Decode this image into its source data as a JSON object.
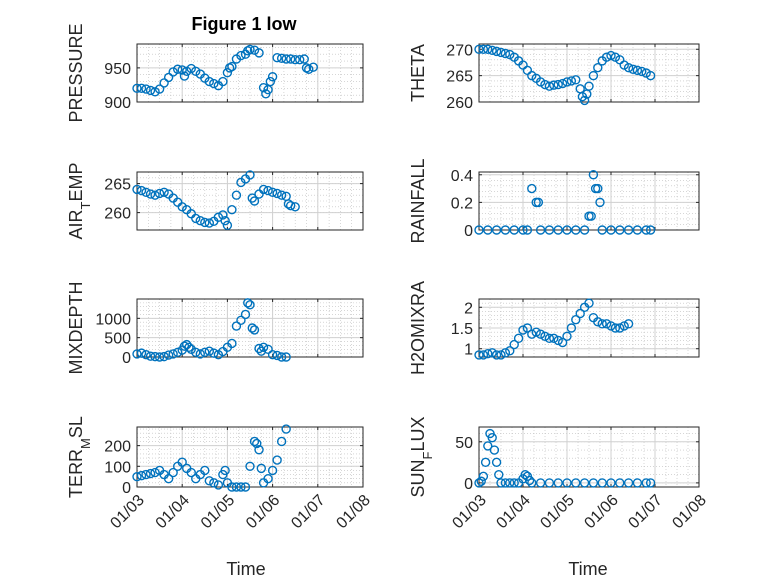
{
  "figure": {
    "title": "Figure 1 low"
  },
  "colors": {
    "marker": "#0072bd",
    "axis": "#262626",
    "grid": "#d0d0d0",
    "grid_minor": "#bdbdbd"
  },
  "time_axis": {
    "label": "Time",
    "ticks": [
      {
        "value": 0,
        "label": "01/03"
      },
      {
        "value": 1,
        "label": "01/04"
      },
      {
        "value": 2,
        "label": "01/05"
      },
      {
        "value": 3,
        "label": "01/06"
      },
      {
        "value": 4,
        "label": "01/07"
      },
      {
        "value": 5,
        "label": "01/08"
      }
    ]
  },
  "chart_data": [
    {
      "type": "scatter",
      "ylabel": "PRESSURE",
      "ylabel_parts": [
        {
          "text": "PRESSURE"
        }
      ],
      "ylim": [
        900,
        985
      ],
      "yticks": [
        900,
        950
      ],
      "xlim": [
        0,
        5
      ],
      "points": [
        [
          0,
          920
        ],
        [
          0.1,
          920
        ],
        [
          0.2,
          919
        ],
        [
          0.3,
          917
        ],
        [
          0.4,
          915
        ],
        [
          0.5,
          919
        ],
        [
          0.6,
          928
        ],
        [
          0.7,
          936
        ],
        [
          0.8,
          944
        ],
        [
          0.9,
          948
        ],
        [
          1.0,
          947
        ],
        [
          1.05,
          938
        ],
        [
          1.1,
          945
        ],
        [
          1.2,
          949
        ],
        [
          1.3,
          945
        ],
        [
          1.4,
          941
        ],
        [
          1.5,
          935
        ],
        [
          1.6,
          930
        ],
        [
          1.7,
          927
        ],
        [
          1.8,
          924
        ],
        [
          1.9,
          930
        ],
        [
          2.0,
          943
        ],
        [
          2.05,
          950
        ],
        [
          2.1,
          952
        ],
        [
          2.2,
          963
        ],
        [
          2.3,
          968
        ],
        [
          2.4,
          970
        ],
        [
          2.45,
          975
        ],
        [
          2.5,
          977
        ],
        [
          2.6,
          976
        ],
        [
          2.7,
          972
        ],
        [
          2.8,
          921
        ],
        [
          2.85,
          912
        ],
        [
          2.9,
          918
        ],
        [
          2.95,
          930
        ],
        [
          3.0,
          937
        ],
        [
          3.1,
          965
        ],
        [
          3.2,
          964
        ],
        [
          3.3,
          963
        ],
        [
          3.4,
          963
        ],
        [
          3.5,
          962
        ],
        [
          3.6,
          962
        ],
        [
          3.7,
          963
        ],
        [
          3.75,
          950
        ],
        [
          3.8,
          948
        ],
        [
          3.9,
          951
        ]
      ]
    },
    {
      "type": "scatter",
      "ylabel": "THETA",
      "ylabel_parts": [
        {
          "text": "THETA"
        }
      ],
      "ylim": [
        260,
        271
      ],
      "yticks": [
        260,
        265,
        270
      ],
      "xlim": [
        0,
        5
      ],
      "points": [
        [
          0,
          270
        ],
        [
          0.1,
          270
        ],
        [
          0.2,
          270
        ],
        [
          0.3,
          269.8
        ],
        [
          0.4,
          269.6
        ],
        [
          0.5,
          269.4
        ],
        [
          0.6,
          269.2
        ],
        [
          0.7,
          269
        ],
        [
          0.8,
          268.5
        ],
        [
          0.9,
          267.8
        ],
        [
          1.0,
          267
        ],
        [
          1.1,
          266
        ],
        [
          1.2,
          265
        ],
        [
          1.3,
          264.5
        ],
        [
          1.4,
          263.8
        ],
        [
          1.5,
          263.3
        ],
        [
          1.6,
          263
        ],
        [
          1.7,
          263.2
        ],
        [
          1.8,
          263.3
        ],
        [
          1.9,
          263.5
        ],
        [
          2.0,
          263.8
        ],
        [
          2.1,
          264
        ],
        [
          2.2,
          264.2
        ],
        [
          2.3,
          262.5
        ],
        [
          2.35,
          261
        ],
        [
          2.4,
          260.3
        ],
        [
          2.45,
          261.5
        ],
        [
          2.5,
          263
        ],
        [
          2.6,
          265
        ],
        [
          2.7,
          266.5
        ],
        [
          2.8,
          267.8
        ],
        [
          2.9,
          268.5
        ],
        [
          3.0,
          268.8
        ],
        [
          3.1,
          268.5
        ],
        [
          3.2,
          268
        ],
        [
          3.3,
          267
        ],
        [
          3.4,
          266.5
        ],
        [
          3.5,
          266.2
        ],
        [
          3.6,
          266
        ],
        [
          3.7,
          265.8
        ],
        [
          3.8,
          265.5
        ],
        [
          3.9,
          265
        ]
      ]
    },
    {
      "type": "scatter",
      "ylabel": "AIR_TEMP",
      "ylabel_parts": [
        {
          "text": "AIR"
        },
        {
          "text": "T",
          "sub": true
        },
        {
          "text": "EMP"
        }
      ],
      "ylim": [
        257,
        267
      ],
      "yticks": [
        260,
        265
      ],
      "xlim": [
        0,
        5
      ],
      "points": [
        [
          0,
          264
        ],
        [
          0.1,
          263.8
        ],
        [
          0.2,
          263.5
        ],
        [
          0.3,
          263.2
        ],
        [
          0.4,
          263
        ],
        [
          0.5,
          263.3
        ],
        [
          0.6,
          263.5
        ],
        [
          0.7,
          263.2
        ],
        [
          0.8,
          262.5
        ],
        [
          0.9,
          261.8
        ],
        [
          1.0,
          261
        ],
        [
          1.1,
          260.5
        ],
        [
          1.2,
          259.8
        ],
        [
          1.3,
          259
        ],
        [
          1.4,
          258.6
        ],
        [
          1.5,
          258.3
        ],
        [
          1.6,
          258.2
        ],
        [
          1.7,
          258.5
        ],
        [
          1.8,
          259.2
        ],
        [
          1.9,
          259.6
        ],
        [
          1.95,
          258.6
        ],
        [
          2.0,
          257.8
        ],
        [
          2.1,
          260.5
        ],
        [
          2.2,
          263
        ],
        [
          2.3,
          265.2
        ],
        [
          2.4,
          265.8
        ],
        [
          2.5,
          266.5
        ],
        [
          2.55,
          262.5
        ],
        [
          2.6,
          262
        ],
        [
          2.7,
          263.2
        ],
        [
          2.8,
          264
        ],
        [
          2.9,
          263.8
        ],
        [
          3.0,
          263.5
        ],
        [
          3.1,
          263.3
        ],
        [
          3.2,
          263
        ],
        [
          3.3,
          262.8
        ],
        [
          3.35,
          261.5
        ],
        [
          3.4,
          261.2
        ],
        [
          3.5,
          261
        ]
      ]
    },
    {
      "type": "scatter",
      "ylabel": "RAINFALL",
      "ylabel_parts": [
        {
          "text": "RAINFALL"
        }
      ],
      "ylim": [
        0,
        0.42
      ],
      "yticks": [
        0,
        0.2,
        0.4
      ],
      "xlim": [
        0,
        5
      ],
      "points": [
        [
          0,
          0
        ],
        [
          0.2,
          0
        ],
        [
          0.4,
          0
        ],
        [
          0.6,
          0
        ],
        [
          0.8,
          0
        ],
        [
          1.0,
          0
        ],
        [
          1.1,
          0
        ],
        [
          1.2,
          0.3
        ],
        [
          1.3,
          0.2
        ],
        [
          1.35,
          0.2
        ],
        [
          1.4,
          0
        ],
        [
          1.6,
          0
        ],
        [
          1.8,
          0
        ],
        [
          2.0,
          0
        ],
        [
          2.2,
          0
        ],
        [
          2.4,
          0
        ],
        [
          2.5,
          0.1
        ],
        [
          2.55,
          0.1
        ],
        [
          2.6,
          0.4
        ],
        [
          2.65,
          0.3
        ],
        [
          2.7,
          0.3
        ],
        [
          2.75,
          0.2
        ],
        [
          2.8,
          0
        ],
        [
          3.0,
          0
        ],
        [
          3.2,
          0
        ],
        [
          3.4,
          0
        ],
        [
          3.6,
          0
        ],
        [
          3.8,
          0
        ],
        [
          3.9,
          0
        ]
      ]
    },
    {
      "type": "scatter",
      "ylabel": "MIXDEPTH",
      "ylabel_parts": [
        {
          "text": "MIXDEPTH"
        }
      ],
      "ylim": [
        0,
        1500
      ],
      "yticks": [
        0,
        500,
        1000
      ],
      "xlim": [
        0,
        5
      ],
      "points": [
        [
          0,
          80
        ],
        [
          0.1,
          100
        ],
        [
          0.2,
          60
        ],
        [
          0.3,
          20
        ],
        [
          0.4,
          10
        ],
        [
          0.5,
          0
        ],
        [
          0.6,
          10
        ],
        [
          0.7,
          50
        ],
        [
          0.8,
          80
        ],
        [
          0.9,
          120
        ],
        [
          1.0,
          180
        ],
        [
          1.05,
          280
        ],
        [
          1.1,
          320
        ],
        [
          1.15,
          250
        ],
        [
          1.2,
          200
        ],
        [
          1.3,
          120
        ],
        [
          1.4,
          80
        ],
        [
          1.5,
          120
        ],
        [
          1.6,
          150
        ],
        [
          1.7,
          100
        ],
        [
          1.8,
          60
        ],
        [
          1.9,
          140
        ],
        [
          2.0,
          250
        ],
        [
          2.1,
          350
        ],
        [
          2.2,
          800
        ],
        [
          2.3,
          950
        ],
        [
          2.4,
          1100
        ],
        [
          2.45,
          1400
        ],
        [
          2.5,
          1350
        ],
        [
          2.55,
          750
        ],
        [
          2.6,
          700
        ],
        [
          2.7,
          220
        ],
        [
          2.75,
          150
        ],
        [
          2.8,
          250
        ],
        [
          2.9,
          200
        ],
        [
          3.0,
          60
        ],
        [
          3.1,
          40
        ],
        [
          3.2,
          0
        ],
        [
          3.3,
          0
        ]
      ]
    },
    {
      "type": "scatter",
      "ylabel": "H2OMIXRA",
      "ylabel_parts": [
        {
          "text": "H2OMIXRA"
        }
      ],
      "ylim": [
        0.8,
        2.2
      ],
      "yticks": [
        1,
        1.5,
        2
      ],
      "xlim": [
        0,
        5
      ],
      "points": [
        [
          0,
          0.85
        ],
        [
          0.1,
          0.85
        ],
        [
          0.2,
          0.88
        ],
        [
          0.3,
          0.9
        ],
        [
          0.4,
          0.85
        ],
        [
          0.5,
          0.85
        ],
        [
          0.6,
          0.9
        ],
        [
          0.7,
          0.95
        ],
        [
          0.8,
          1.1
        ],
        [
          0.9,
          1.25
        ],
        [
          1.0,
          1.45
        ],
        [
          1.1,
          1.5
        ],
        [
          1.2,
          1.35
        ],
        [
          1.3,
          1.4
        ],
        [
          1.4,
          1.35
        ],
        [
          1.5,
          1.3
        ],
        [
          1.6,
          1.25
        ],
        [
          1.7,
          1.25
        ],
        [
          1.8,
          1.2
        ],
        [
          1.9,
          1.15
        ],
        [
          2.0,
          1.3
        ],
        [
          2.1,
          1.5
        ],
        [
          2.2,
          1.7
        ],
        [
          2.3,
          1.85
        ],
        [
          2.4,
          2.0
        ],
        [
          2.5,
          2.1
        ],
        [
          2.6,
          1.75
        ],
        [
          2.7,
          1.65
        ],
        [
          2.8,
          1.6
        ],
        [
          2.9,
          1.6
        ],
        [
          3.0,
          1.55
        ],
        [
          3.1,
          1.5
        ],
        [
          3.2,
          1.5
        ],
        [
          3.3,
          1.55
        ],
        [
          3.4,
          1.6
        ]
      ]
    },
    {
      "type": "scatter",
      "ylabel": "TERR_MSL",
      "ylabel_parts": [
        {
          "text": "TERR"
        },
        {
          "text": "M",
          "sub": true
        },
        {
          "text": "SL"
        }
      ],
      "ylim": [
        0,
        290
      ],
      "yticks": [
        0,
        100,
        200
      ],
      "xlim": [
        0,
        5
      ],
      "points": [
        [
          0,
          50
        ],
        [
          0.1,
          55
        ],
        [
          0.2,
          60
        ],
        [
          0.3,
          65
        ],
        [
          0.4,
          70
        ],
        [
          0.5,
          80
        ],
        [
          0.6,
          60
        ],
        [
          0.7,
          40
        ],
        [
          0.8,
          70
        ],
        [
          0.9,
          100
        ],
        [
          1.0,
          120
        ],
        [
          1.1,
          90
        ],
        [
          1.2,
          70
        ],
        [
          1.3,
          40
        ],
        [
          1.4,
          60
        ],
        [
          1.5,
          80
        ],
        [
          1.6,
          30
        ],
        [
          1.7,
          20
        ],
        [
          1.8,
          10
        ],
        [
          1.9,
          60
        ],
        [
          1.95,
          80
        ],
        [
          2.0,
          20
        ],
        [
          2.1,
          0
        ],
        [
          2.2,
          0
        ],
        [
          2.3,
          0
        ],
        [
          2.4,
          0
        ],
        [
          2.5,
          100
        ],
        [
          2.6,
          220
        ],
        [
          2.65,
          210
        ],
        [
          2.7,
          180
        ],
        [
          2.75,
          90
        ],
        [
          2.8,
          20
        ],
        [
          2.9,
          40
        ],
        [
          3.0,
          80
        ],
        [
          3.1,
          130
        ],
        [
          3.2,
          220
        ],
        [
          3.3,
          280
        ]
      ]
    },
    {
      "type": "scatter",
      "ylabel": "SUN_FLUX",
      "ylabel_parts": [
        {
          "text": "SUN"
        },
        {
          "text": "F",
          "sub": true
        },
        {
          "text": "LUX"
        }
      ],
      "ylim": [
        -5,
        68
      ],
      "yticks": [
        0,
        50
      ],
      "xlim": [
        0,
        5
      ],
      "points": [
        [
          0,
          0
        ],
        [
          0.05,
          2
        ],
        [
          0.1,
          8
        ],
        [
          0.15,
          25
        ],
        [
          0.2,
          45
        ],
        [
          0.25,
          60
        ],
        [
          0.3,
          55
        ],
        [
          0.35,
          40
        ],
        [
          0.4,
          25
        ],
        [
          0.45,
          10
        ],
        [
          0.5,
          0
        ],
        [
          0.6,
          0
        ],
        [
          0.7,
          0
        ],
        [
          0.8,
          0
        ],
        [
          0.9,
          0
        ],
        [
          1.0,
          5
        ],
        [
          1.05,
          10
        ],
        [
          1.1,
          8
        ],
        [
          1.15,
          3
        ],
        [
          1.2,
          0
        ],
        [
          1.4,
          0
        ],
        [
          1.6,
          0
        ],
        [
          1.8,
          0
        ],
        [
          2.0,
          0
        ],
        [
          2.2,
          0
        ],
        [
          2.4,
          0
        ],
        [
          2.6,
          0
        ],
        [
          2.8,
          0
        ],
        [
          3.0,
          0
        ],
        [
          3.2,
          0
        ],
        [
          3.4,
          0
        ],
        [
          3.6,
          0
        ],
        [
          3.8,
          0
        ],
        [
          3.9,
          0
        ]
      ]
    }
  ]
}
